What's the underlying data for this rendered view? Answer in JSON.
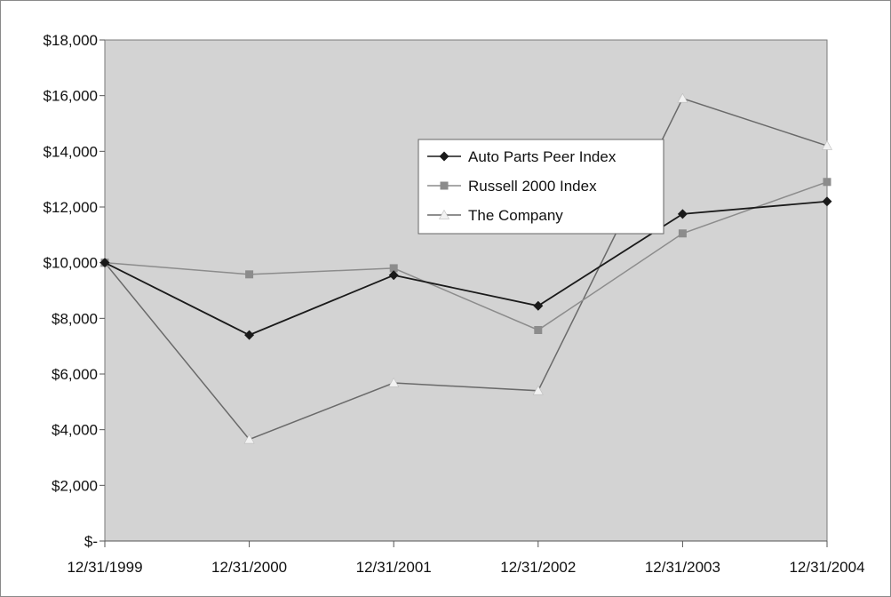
{
  "chart_data": {
    "type": "line",
    "categories": [
      "12/31/1999",
      "12/31/2000",
      "12/31/2001",
      "12/31/2002",
      "12/31/2003",
      "12/31/2004"
    ],
    "y_tick_labels": [
      "$-",
      "$2,000",
      "$4,000",
      "$6,000",
      "$8,000",
      "$10,000",
      "$12,000",
      "$14,000",
      "$16,000",
      "$18,000"
    ],
    "ylim": [
      0,
      18000
    ],
    "grid": false,
    "plot_background": "#d3d3d3",
    "legend_position": "top-right",
    "series": [
      {
        "name": "Auto Parts Peer Index",
        "marker": "diamond",
        "color": "#1a1a1a",
        "marker_color": "#1a1a1a",
        "values": [
          10000,
          7400,
          9550,
          8450,
          11750,
          12200
        ]
      },
      {
        "name": "Russell 2000 Index",
        "marker": "square",
        "color": "#8c8c8c",
        "marker_color": "#8c8c8c",
        "values": [
          10000,
          9580,
          9800,
          7580,
          11050,
          12900
        ]
      },
      {
        "name": "The Company",
        "marker": "triangle",
        "color": "#6a6a6a",
        "marker_color": "#f2f2f2",
        "values": [
          10000,
          3650,
          5680,
          5400,
          15900,
          14200
        ]
      }
    ]
  }
}
